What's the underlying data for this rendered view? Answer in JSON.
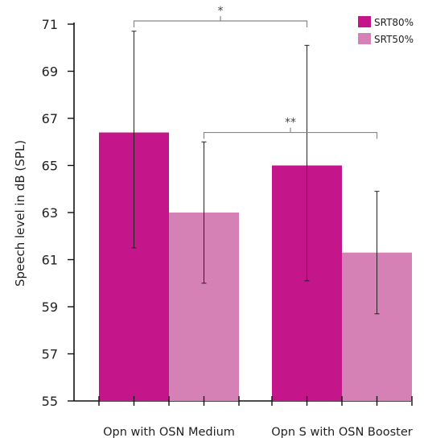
{
  "chart_data": {
    "type": "bar",
    "title": "",
    "xlabel": "",
    "ylabel": "Speech level in dB (SPL)",
    "ylim": [
      55,
      71
    ],
    "yticks": [
      55,
      57,
      59,
      61,
      63,
      65,
      67,
      69,
      71
    ],
    "categories": [
      "Opn with OSN Medium",
      "Opn S with OSN Booster"
    ],
    "series": [
      {
        "name": "SRT80%",
        "color": "#c4168a",
        "values": [
          66.4,
          65.0
        ],
        "error_low": [
          61.5,
          60.1
        ],
        "error_high": [
          70.7,
          70.1
        ]
      },
      {
        "name": "SRT50%",
        "color": "#d681b6",
        "values": [
          63.0,
          61.3
        ],
        "error_low": [
          60.0,
          58.7
        ],
        "error_high": [
          66.0,
          63.9
        ]
      }
    ],
    "significance": [
      {
        "label": "*",
        "from": "Opn with OSN Medium / SRT80%",
        "to": "Opn S with OSN Booster / SRT80%",
        "level": 71
      },
      {
        "label": "**",
        "from": "Opn with OSN Medium / SRT50%",
        "to": "Opn S with OSN Booster / SRT50%",
        "level": 66.4
      }
    ],
    "legend_position": "top-right",
    "grid": false
  }
}
